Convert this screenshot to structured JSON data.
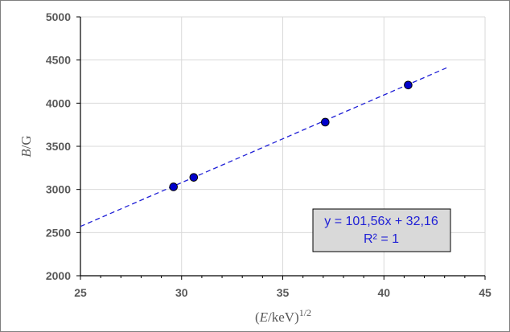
{
  "chart_data": {
    "type": "scatter",
    "title": "",
    "xlabel": "(E/keV)^1/2",
    "xlabel_parts": {
      "open": "(",
      "var": "E",
      "unit": "/keV)",
      "exp": "1/2"
    },
    "ylabel": "B/G",
    "ylabel_parts": {
      "var": "B",
      "unit": "/G"
    },
    "xlim": [
      25,
      45
    ],
    "ylim": [
      2000,
      5000
    ],
    "xticks": [
      25,
      30,
      35,
      40,
      45
    ],
    "yticks": [
      2000,
      2500,
      3000,
      3500,
      4000,
      4500,
      5000
    ],
    "grid": true,
    "series": [
      {
        "points": [
          {
            "x": 29.6,
            "y": 3030
          },
          {
            "x": 30.6,
            "y": 3140
          },
          {
            "x": 37.1,
            "y": 3780
          },
          {
            "x": 41.2,
            "y": 4210
          }
        ],
        "color": "#0000cc"
      }
    ],
    "trendline": {
      "slope": 101.56,
      "intercept": 32.16,
      "x_range": [
        25,
        43.2
      ],
      "style": "dashed",
      "color": "#1f1fd6",
      "equation_label": "y = 101,56x + 32,16",
      "r2_label": "R² = 1"
    },
    "annotation_box": {
      "placement": "lower-right"
    }
  }
}
